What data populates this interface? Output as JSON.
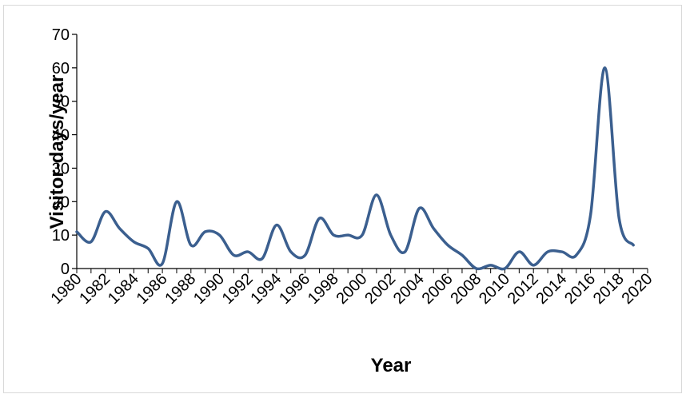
{
  "chart_data": {
    "type": "line",
    "title": "",
    "xlabel": "Year",
    "ylabel": "Visitor-days/year",
    "xlim": [
      1980,
      2020
    ],
    "ylim": [
      0,
      70
    ],
    "y_ticks": [
      0,
      10,
      20,
      30,
      40,
      50,
      60,
      70
    ],
    "x_ticks": [
      "1980",
      "1982",
      "1984",
      "1986",
      "1988",
      "1990",
      "1992",
      "1994",
      "1996",
      "1998",
      "2000",
      "2002",
      "2004",
      "2006",
      "2008",
      "2010",
      "2012",
      "2014",
      "2016",
      "2018",
      "2020"
    ],
    "grid": false,
    "legend": "none",
    "smooth": true,
    "series_color": "#3b5f8f",
    "series": [
      {
        "x": [
          1980,
          1981,
          1982,
          1983,
          1984,
          1985,
          1986,
          1987,
          1988,
          1989,
          1990,
          1991,
          1992,
          1993,
          1994,
          1995,
          1996,
          1997,
          1998,
          1999,
          2000,
          2001,
          2002,
          2003,
          2004,
          2005,
          2006,
          2007,
          2008,
          2009,
          2010,
          2011,
          2012,
          2013,
          2014,
          2015,
          2016,
          2017,
          2018,
          2019
        ],
        "values": [
          11,
          8,
          17,
          12,
          8,
          6,
          1.5,
          20,
          7,
          11,
          10,
          4,
          5,
          3,
          13,
          5,
          4,
          15,
          10,
          10,
          10,
          22,
          10,
          5,
          18,
          12,
          7,
          4,
          0,
          1,
          0,
          5,
          1,
          5,
          5,
          4,
          16,
          60,
          15,
          7
        ]
      }
    ]
  }
}
